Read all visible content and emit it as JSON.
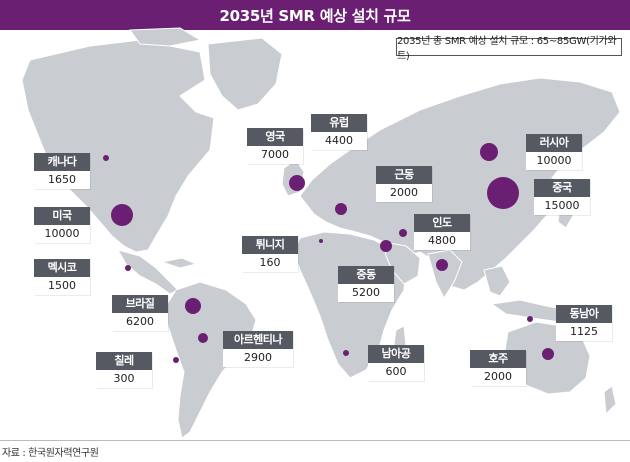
{
  "title": "2035년 SMR 예상 설치 규모",
  "subtitle": "2035년 총 SMR 예상 설치 규모 : 65~85GW(기가와트)",
  "source": "자료 : 한국원자력연구원",
  "colors": {
    "title_bg": "#6a1f73",
    "marker": "#6a1f73",
    "label_bg": "#555a62",
    "land": "#c9ccd1"
  },
  "regions": [
    {
      "name": "캐나다",
      "value": "1650"
    },
    {
      "name": "미국",
      "value": "10000"
    },
    {
      "name": "멕시코",
      "value": "1500"
    },
    {
      "name": "브라질",
      "value": "6200"
    },
    {
      "name": "칠레",
      "value": "300"
    },
    {
      "name": "아르헨티나",
      "value": "2900"
    },
    {
      "name": "영국",
      "value": "7000"
    },
    {
      "name": "유럽",
      "value": "4400"
    },
    {
      "name": "튀니지",
      "value": "160"
    },
    {
      "name": "남아공",
      "value": "600"
    },
    {
      "name": "중동",
      "value": "5200"
    },
    {
      "name": "근동",
      "value": "2000"
    },
    {
      "name": "인도",
      "value": "4800"
    },
    {
      "name": "러시아",
      "value": "10000"
    },
    {
      "name": "중국",
      "value": "15000"
    },
    {
      "name": "동남아",
      "value": "1125"
    },
    {
      "name": "호주",
      "value": "2000"
    }
  ]
}
